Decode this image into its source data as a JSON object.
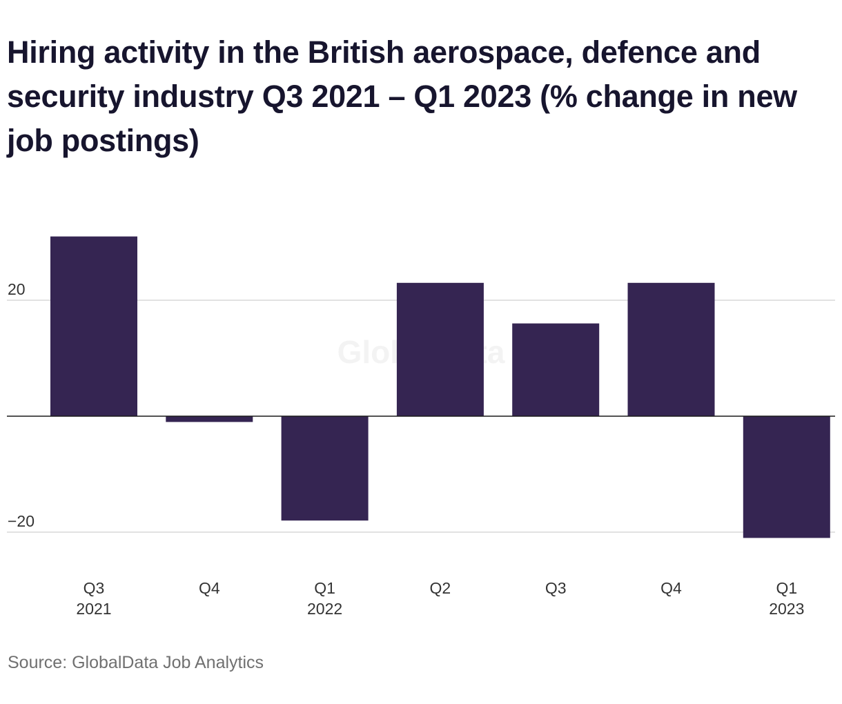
{
  "title": "Hiring activity in the British aerospace, defence and security industry Q3 2021 – Q1 2023 (% change in new job postings)",
  "watermark": "GlobalData",
  "source": "Source: GlobalData Job Analytics",
  "colors": {
    "bar": "#352552",
    "grid": "#d9d9d9",
    "zero_line": "#1a1a1a",
    "tick_text": "#333333",
    "watermark": "#f3f3f3"
  },
  "chart_data": {
    "type": "bar",
    "title": "Hiring activity in the British aerospace, defence and security industry Q3 2021 – Q1 2023 (% change in new job postings)",
    "xlabel": "",
    "ylabel": "",
    "categories": [
      [
        "Q3",
        "2021"
      ],
      [
        "Q4",
        ""
      ],
      [
        "Q1",
        "2022"
      ],
      [
        "Q2",
        ""
      ],
      [
        "Q3",
        ""
      ],
      [
        "Q4",
        ""
      ],
      [
        "Q1",
        "2023"
      ]
    ],
    "values": [
      31,
      -1,
      -18,
      23,
      16,
      23,
      -21
    ],
    "y_ticks": [
      {
        "value": 20,
        "label": "20"
      },
      {
        "value": -20,
        "label": "−20"
      }
    ],
    "ylim": [
      -21,
      31
    ],
    "grid": true,
    "legend": "none"
  }
}
